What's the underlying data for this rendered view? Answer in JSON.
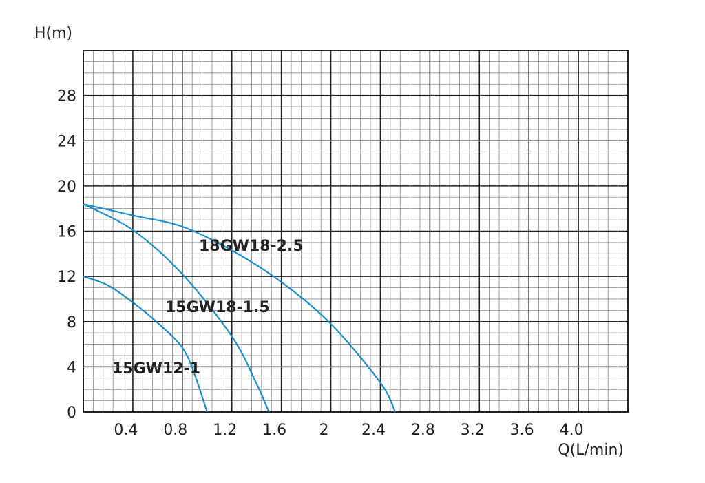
{
  "chart_data": {
    "type": "line",
    "y_label": "H(m)",
    "x_label": "Q(L/min)",
    "xlim": [
      0,
      4.4
    ],
    "ylim": [
      0,
      32
    ],
    "xticks": [
      0.4,
      0.8,
      1.2,
      1.6,
      2.0,
      2.4,
      2.8,
      3.2,
      3.6,
      {
        "value": 4.0,
        "label": "4.0"
      }
    ],
    "yticks": [
      0,
      4,
      8,
      12,
      16,
      20,
      24,
      28
    ],
    "grid": true,
    "series": [
      {
        "name": "15GW12-1",
        "color": "#1a8fc9",
        "x": [
          0,
          0.2,
          0.4,
          0.6,
          0.8,
          0.9,
          1.0
        ],
        "values": [
          12,
          11.2,
          9.7,
          7.9,
          5.7,
          3.3,
          0
        ]
      },
      {
        "name": "15GW18-1.5",
        "color": "#1a8fc9",
        "x": [
          0,
          0.4,
          0.8,
          1.2,
          1.4,
          1.5
        ],
        "values": [
          18.4,
          16.1,
          12.2,
          6.7,
          2.5,
          0
        ]
      },
      {
        "name": "18GW18-2.5",
        "color": "#1a8fc9",
        "x": [
          0,
          0.4,
          0.8,
          1.2,
          1.6,
          2.0,
          2.4,
          2.52
        ],
        "values": [
          18.4,
          17.4,
          16.4,
          14.3,
          11.5,
          7.8,
          2.6,
          0
        ]
      }
    ]
  }
}
